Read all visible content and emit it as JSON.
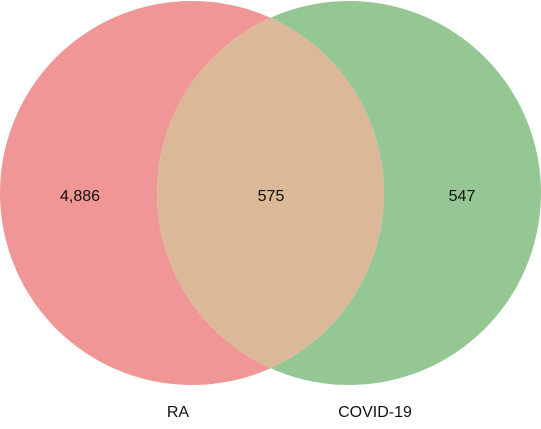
{
  "chart_data": {
    "type": "venn",
    "sets": [
      "RA",
      "COVID-19"
    ],
    "regions": [
      "RA",
      "RA COVID-19",
      "COVID-19"
    ],
    "values": [
      4886,
      575,
      547
    ],
    "value_labels": [
      "4,886",
      "575",
      "547"
    ],
    "colors": [
      "#f09696",
      "#dab898",
      "#95c794"
    ]
  }
}
